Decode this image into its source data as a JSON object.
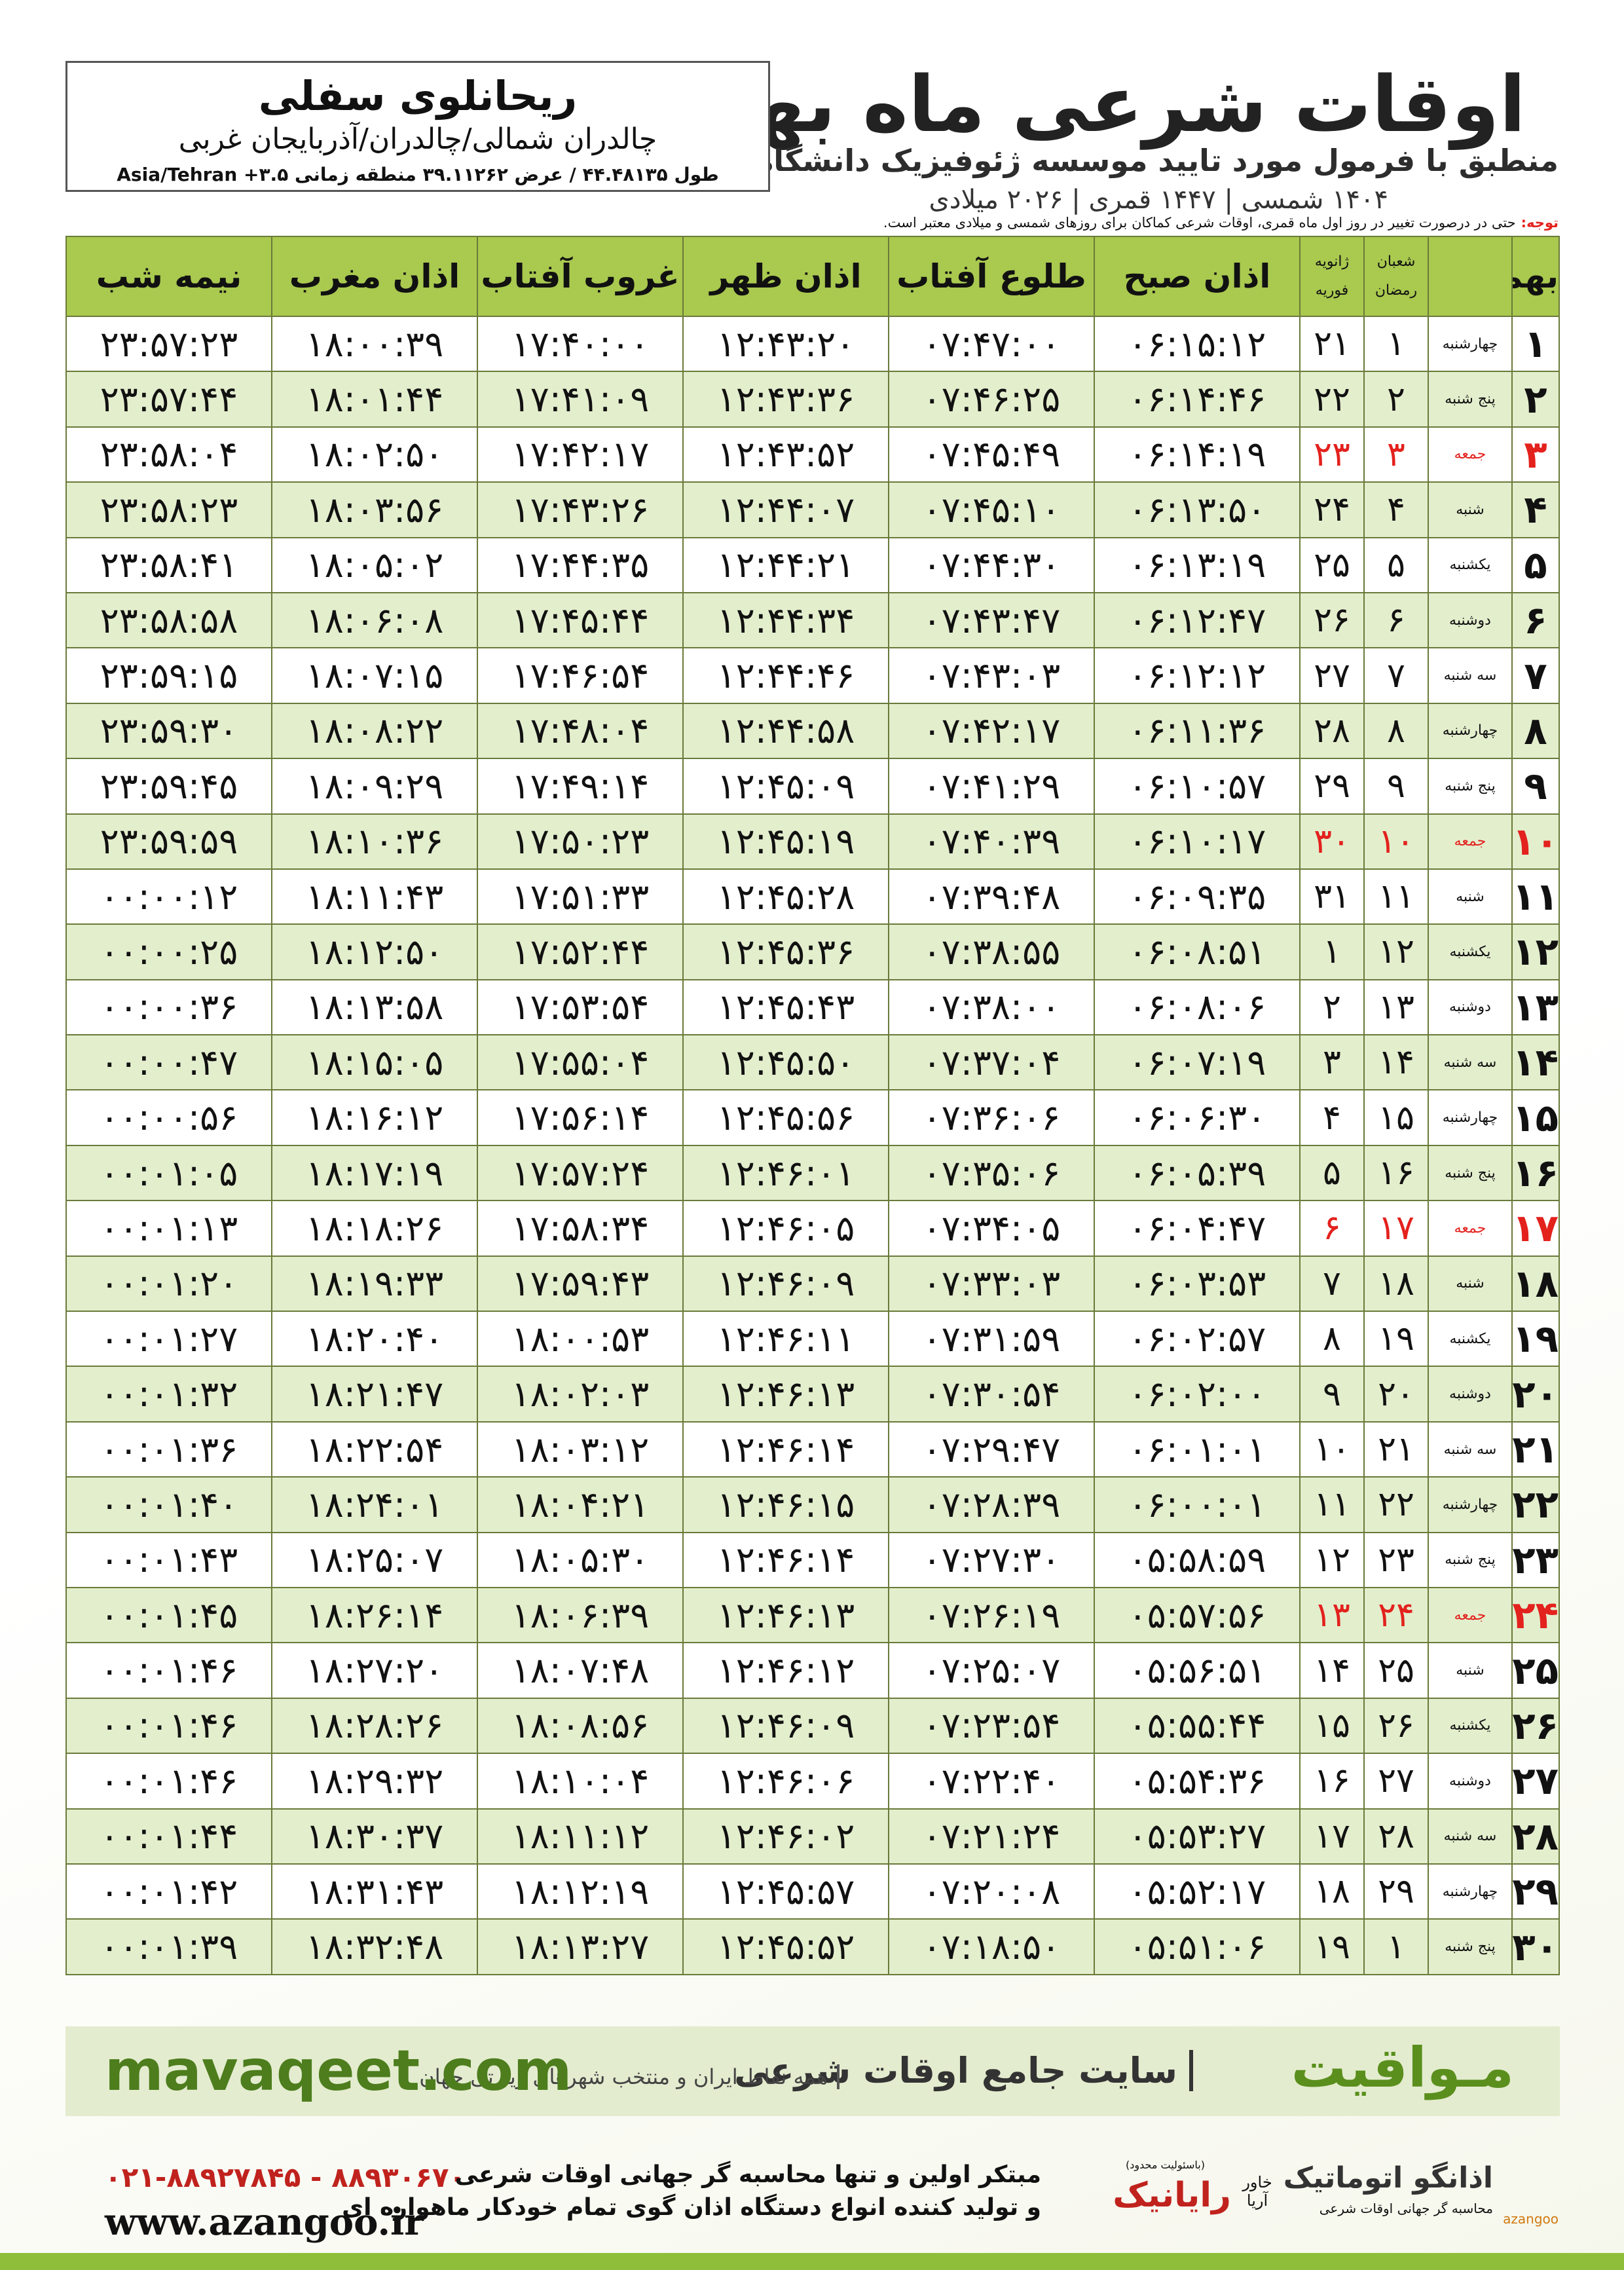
{
  "header": {
    "title": "اوقات شرعی ماه بهمن",
    "subtitle": "منطبق با فرمول مورد تایید موسسه ژئوفیزیک دانشگاه تهران",
    "years": "۱۴۰۴ شمسی | ۱۴۴۷ قمری | ۲۰۲۶ میلادی"
  },
  "location": {
    "name": "ریحانلوی سفلی",
    "region": "چالدران شمالی/چالدران/آذربایجان غربی",
    "coords": "طول ۴۴.۴۸۱۳۵ / عرض ۳۹.۱۱۲۶۲ منطقه زمانی Asia/Tehran +۳.۵"
  },
  "note": {
    "label": "توجه:",
    "text": "حتی در درصورت تغییر در روز اول ماه قمری، اوقات شرعی کماکان برای روزهای شمسی و میلادی معتبر است."
  },
  "table": {
    "columns": {
      "day": "بهمن",
      "hijri": [
        "شعبان",
        "رمضان"
      ],
      "greg": [
        "ژانویه",
        "فوریه"
      ],
      "times": [
        "اذان صبح",
        "طلوع آفتاب",
        "اذان ظهر",
        "غروب آفتاب",
        "اذان مغرب",
        "نیمه شب"
      ]
    },
    "rows": [
      {
        "day": "۱",
        "weekday": "چهارشنبه",
        "hijri": "۱",
        "greg": "۲۱",
        "color": "#111111",
        "times": [
          "۰۶:۱۵:۱۲",
          "۰۷:۴۷:۰۰",
          "۱۲:۴۳:۲۰",
          "۱۷:۴۰:۰۰",
          "۱۸:۰۰:۳۹",
          "۲۳:۵۷:۲۳"
        ]
      },
      {
        "day": "۲",
        "weekday": "پنج شنبه",
        "hijri": "۲",
        "greg": "۲۲",
        "color": "#111111",
        "times": [
          "۰۶:۱۴:۴۶",
          "۰۷:۴۶:۲۵",
          "۱۲:۴۳:۳۶",
          "۱۷:۴۱:۰۹",
          "۱۸:۰۱:۴۴",
          "۲۳:۵۷:۴۴"
        ]
      },
      {
        "day": "۳",
        "weekday": "جمعه",
        "hijri": "۳",
        "greg": "۲۳",
        "color": "#e3211d",
        "times": [
          "۰۶:۱۴:۱۹",
          "۰۷:۴۵:۴۹",
          "۱۲:۴۳:۵۲",
          "۱۷:۴۲:۱۷",
          "۱۸:۰۲:۵۰",
          "۲۳:۵۸:۰۴"
        ]
      },
      {
        "day": "۴",
        "weekday": "شنبه",
        "hijri": "۴",
        "greg": "۲۴",
        "color": "#111111",
        "times": [
          "۰۶:۱۳:۵۰",
          "۰۷:۴۵:۱۰",
          "۱۲:۴۴:۰۷",
          "۱۷:۴۳:۲۶",
          "۱۸:۰۳:۵۶",
          "۲۳:۵۸:۲۳"
        ]
      },
      {
        "day": "۵",
        "weekday": "یکشنبه",
        "hijri": "۵",
        "greg": "۲۵",
        "color": "#111111",
        "times": [
          "۰۶:۱۳:۱۹",
          "۰۷:۴۴:۳۰",
          "۱۲:۴۴:۲۱",
          "۱۷:۴۴:۳۵",
          "۱۸:۰۵:۰۲",
          "۲۳:۵۸:۴۱"
        ]
      },
      {
        "day": "۶",
        "weekday": "دوشنبه",
        "hijri": "۶",
        "greg": "۲۶",
        "color": "#111111",
        "times": [
          "۰۶:۱۲:۴۷",
          "۰۷:۴۳:۴۷",
          "۱۲:۴۴:۳۴",
          "۱۷:۴۵:۴۴",
          "۱۸:۰۶:۰۸",
          "۲۳:۵۸:۵۸"
        ]
      },
      {
        "day": "۷",
        "weekday": "سه شنبه",
        "hijri": "۷",
        "greg": "۲۷",
        "color": "#111111",
        "times": [
          "۰۶:۱۲:۱۲",
          "۰۷:۴۳:۰۳",
          "۱۲:۴۴:۴۶",
          "۱۷:۴۶:۵۴",
          "۱۸:۰۷:۱۵",
          "۲۳:۵۹:۱۵"
        ]
      },
      {
        "day": "۸",
        "weekday": "چهارشنبه",
        "hijri": "۸",
        "greg": "۲۸",
        "color": "#111111",
        "times": [
          "۰۶:۱۱:۳۶",
          "۰۷:۴۲:۱۷",
          "۱۲:۴۴:۵۸",
          "۱۷:۴۸:۰۴",
          "۱۸:۰۸:۲۲",
          "۲۳:۵۹:۳۰"
        ]
      },
      {
        "day": "۹",
        "weekday": "پنج شنبه",
        "hijri": "۹",
        "greg": "۲۹",
        "color": "#111111",
        "times": [
          "۰۶:۱۰:۵۷",
          "۰۷:۴۱:۲۹",
          "۱۲:۴۵:۰۹",
          "۱۷:۴۹:۱۴",
          "۱۸:۰۹:۲۹",
          "۲۳:۵۹:۴۵"
        ]
      },
      {
        "day": "۱۰",
        "weekday": "جمعه",
        "hijri": "۱۰",
        "greg": "۳۰",
        "color": "#e3211d",
        "times": [
          "۰۶:۱۰:۱۷",
          "۰۷:۴۰:۳۹",
          "۱۲:۴۵:۱۹",
          "۱۷:۵۰:۲۳",
          "۱۸:۱۰:۳۶",
          "۲۳:۵۹:۵۹"
        ]
      },
      {
        "day": "۱۱",
        "weekday": "شنبه",
        "hijri": "۱۱",
        "greg": "۳۱",
        "color": "#111111",
        "times": [
          "۰۶:۰۹:۳۵",
          "۰۷:۳۹:۴۸",
          "۱۲:۴۵:۲۸",
          "۱۷:۵۱:۳۳",
          "۱۸:۱۱:۴۳",
          "۰۰:۰۰:۱۲"
        ]
      },
      {
        "day": "۱۲",
        "weekday": "یکشنبه",
        "hijri": "۱۲",
        "greg": "۱",
        "color": "#111111",
        "times": [
          "۰۶:۰۸:۵۱",
          "۰۷:۳۸:۵۵",
          "۱۲:۴۵:۳۶",
          "۱۷:۵۲:۴۴",
          "۱۸:۱۲:۵۰",
          "۰۰:۰۰:۲۵"
        ]
      },
      {
        "day": "۱۳",
        "weekday": "دوشنبه",
        "hijri": "۱۳",
        "greg": "۲",
        "color": "#111111",
        "times": [
          "۰۶:۰۸:۰۶",
          "۰۷:۳۸:۰۰",
          "۱۲:۴۵:۴۳",
          "۱۷:۵۳:۵۴",
          "۱۸:۱۳:۵۸",
          "۰۰:۰۰:۳۶"
        ]
      },
      {
        "day": "۱۴",
        "weekday": "سه شنبه",
        "hijri": "۱۴",
        "greg": "۳",
        "color": "#111111",
        "times": [
          "۰۶:۰۷:۱۹",
          "۰۷:۳۷:۰۴",
          "۱۲:۴۵:۵۰",
          "۱۷:۵۵:۰۴",
          "۱۸:۱۵:۰۵",
          "۰۰:۰۰:۴۷"
        ]
      },
      {
        "day": "۱۵",
        "weekday": "چهارشنبه",
        "hijri": "۱۵",
        "greg": "۴",
        "color": "#111111",
        "times": [
          "۰۶:۰۶:۳۰",
          "۰۷:۳۶:۰۶",
          "۱۲:۴۵:۵۶",
          "۱۷:۵۶:۱۴",
          "۱۸:۱۶:۱۲",
          "۰۰:۰۰:۵۶"
        ]
      },
      {
        "day": "۱۶",
        "weekday": "پنج شنبه",
        "hijri": "۱۶",
        "greg": "۵",
        "color": "#111111",
        "times": [
          "۰۶:۰۵:۳۹",
          "۰۷:۳۵:۰۶",
          "۱۲:۴۶:۰۱",
          "۱۷:۵۷:۲۴",
          "۱۸:۱۷:۱۹",
          "۰۰:۰۱:۰۵"
        ]
      },
      {
        "day": "۱۷",
        "weekday": "جمعه",
        "hijri": "۱۷",
        "greg": "۶",
        "color": "#e3211d",
        "times": [
          "۰۶:۰۴:۴۷",
          "۰۷:۳۴:۰۵",
          "۱۲:۴۶:۰۵",
          "۱۷:۵۸:۳۴",
          "۱۸:۱۸:۲۶",
          "۰۰:۰۱:۱۳"
        ]
      },
      {
        "day": "۱۸",
        "weekday": "شنبه",
        "hijri": "۱۸",
        "greg": "۷",
        "color": "#111111",
        "times": [
          "۰۶:۰۳:۵۳",
          "۰۷:۳۳:۰۳",
          "۱۲:۴۶:۰۹",
          "۱۷:۵۹:۴۳",
          "۱۸:۱۹:۳۳",
          "۰۰:۰۱:۲۰"
        ]
      },
      {
        "day": "۱۹",
        "weekday": "یکشنبه",
        "hijri": "۱۹",
        "greg": "۸",
        "color": "#111111",
        "times": [
          "۰۶:۰۲:۵۷",
          "۰۷:۳۱:۵۹",
          "۱۲:۴۶:۱۱",
          "۱۸:۰۰:۵۳",
          "۱۸:۲۰:۴۰",
          "۰۰:۰۱:۲۷"
        ]
      },
      {
        "day": "۲۰",
        "weekday": "دوشنبه",
        "hijri": "۲۰",
        "greg": "۹",
        "color": "#111111",
        "times": [
          "۰۶:۰۲:۰۰",
          "۰۷:۳۰:۵۴",
          "۱۲:۴۶:۱۳",
          "۱۸:۰۲:۰۳",
          "۱۸:۲۱:۴۷",
          "۰۰:۰۱:۳۲"
        ]
      },
      {
        "day": "۲۱",
        "weekday": "سه شنبه",
        "hijri": "۲۱",
        "greg": "۱۰",
        "color": "#111111",
        "times": [
          "۰۶:۰۱:۰۱",
          "۰۷:۲۹:۴۷",
          "۱۲:۴۶:۱۴",
          "۱۸:۰۳:۱۲",
          "۱۸:۲۲:۵۴",
          "۰۰:۰۱:۳۶"
        ]
      },
      {
        "day": "۲۲",
        "weekday": "چهارشنبه",
        "hijri": "۲۲",
        "greg": "۱۱",
        "color": "#111111",
        "times": [
          "۰۶:۰۰:۰۱",
          "۰۷:۲۸:۳۹",
          "۱۲:۴۶:۱۵",
          "۱۸:۰۴:۲۱",
          "۱۸:۲۴:۰۱",
          "۰۰:۰۱:۴۰"
        ]
      },
      {
        "day": "۲۳",
        "weekday": "پنج شنبه",
        "hijri": "۲۳",
        "greg": "۱۲",
        "color": "#111111",
        "times": [
          "۰۵:۵۸:۵۹",
          "۰۷:۲۷:۳۰",
          "۱۲:۴۶:۱۴",
          "۱۸:۰۵:۳۰",
          "۱۸:۲۵:۰۷",
          "۰۰:۰۱:۴۳"
        ]
      },
      {
        "day": "۲۴",
        "weekday": "جمعه",
        "hijri": "۲۴",
        "greg": "۱۳",
        "color": "#e3211d",
        "times": [
          "۰۵:۵۷:۵۶",
          "۰۷:۲۶:۱۹",
          "۱۲:۴۶:۱۳",
          "۱۸:۰۶:۳۹",
          "۱۸:۲۶:۱۴",
          "۰۰:۰۱:۴۵"
        ]
      },
      {
        "day": "۲۵",
        "weekday": "شنبه",
        "hijri": "۲۵",
        "greg": "۱۴",
        "color": "#111111",
        "times": [
          "۰۵:۵۶:۵۱",
          "۰۷:۲۵:۰۷",
          "۱۲:۴۶:۱۲",
          "۱۸:۰۷:۴۸",
          "۱۸:۲۷:۲۰",
          "۰۰:۰۱:۴۶"
        ]
      },
      {
        "day": "۲۶",
        "weekday": "یکشنبه",
        "hijri": "۲۶",
        "greg": "۱۵",
        "color": "#111111",
        "times": [
          "۰۵:۵۵:۴۴",
          "۰۷:۲۳:۵۴",
          "۱۲:۴۶:۰۹",
          "۱۸:۰۸:۵۶",
          "۱۸:۲۸:۲۶",
          "۰۰:۰۱:۴۶"
        ]
      },
      {
        "day": "۲۷",
        "weekday": "دوشنبه",
        "hijri": "۲۷",
        "greg": "۱۶",
        "color": "#111111",
        "times": [
          "۰۵:۵۴:۳۶",
          "۰۷:۲۲:۴۰",
          "۱۲:۴۶:۰۶",
          "۱۸:۱۰:۰۴",
          "۱۸:۲۹:۳۲",
          "۰۰:۰۱:۴۶"
        ]
      },
      {
        "day": "۲۸",
        "weekday": "سه شنبه",
        "hijri": "۲۸",
        "greg": "۱۷",
        "color": "#111111",
        "times": [
          "۰۵:۵۳:۲۷",
          "۰۷:۲۱:۲۴",
          "۱۲:۴۶:۰۲",
          "۱۸:۱۱:۱۲",
          "۱۸:۳۰:۳۷",
          "۰۰:۰۱:۴۴"
        ]
      },
      {
        "day": "۲۹",
        "weekday": "چهارشنبه",
        "hijri": "۲۹",
        "greg": "۱۸",
        "color": "#111111",
        "times": [
          "۰۵:۵۲:۱۷",
          "۰۷:۲۰:۰۸",
          "۱۲:۴۵:۵۷",
          "۱۸:۱۲:۱۹",
          "۱۸:۳۱:۴۳",
          "۰۰:۰۱:۴۲"
        ]
      },
      {
        "day": "۳۰",
        "weekday": "پنج شنبه",
        "hijri": "۱",
        "greg": "۱۹",
        "color": "#111111",
        "times": [
          "۰۵:۵۱:۰۶",
          "۰۷:۱۸:۵۰",
          "۱۲:۴۵:۵۲",
          "۱۸:۱۳:۲۷",
          "۱۸:۳۲:۴۸",
          "۰۰:۰۱:۳۹"
        ]
      }
    ]
  },
  "banner": {
    "brand": "مـواقیت",
    "slogan": "سایت جامع اوقات شرعی",
    "tagline": "همه نقاط ایران و منتخب شهرهای زیارتی جهان",
    "url": "mavaqeet.com"
  },
  "footer": {
    "phone": "۰۲۱-۸۸۹۲۷۸۴۵ - ۸۸۹۳۰۶۷۰",
    "website": "www.azangoo.ir",
    "line1": "مبتکر اولین و تنها محاسبه گر جهانی اوقات شرعی",
    "line2": "و تولید کننده انواع دستگاه اذان گوی تمام خودکار ماهواره ای",
    "raya_note": "(باسئولیت محدود)",
    "raya": "رایانیک",
    "raya_sub": "خاور آریا",
    "azangoo": "اذانگو اتوماتیک",
    "azangoo_sub": "محاسبه گر جهانی اوقات شرعی",
    "azangoo_latin": "azangoo"
  }
}
